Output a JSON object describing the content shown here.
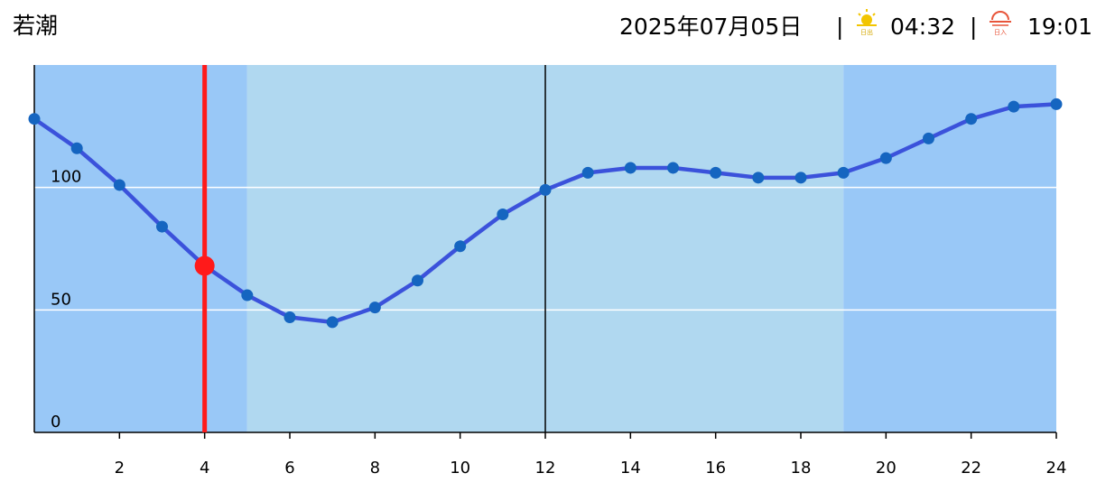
{
  "header": {
    "title": "若潮",
    "date": "2025年07月05日",
    "separator": "|",
    "sunrise_icon_label": "日出",
    "sunrise": "04:32",
    "sunset_icon_label": "日入",
    "sunset": "19:01"
  },
  "chart_data": {
    "type": "line",
    "x": [
      0,
      1,
      2,
      3,
      4,
      5,
      6,
      7,
      8,
      9,
      10,
      11,
      12,
      13,
      14,
      15,
      16,
      17,
      18,
      19,
      20,
      21,
      22,
      23,
      24
    ],
    "series": [
      {
        "color": "#3b52db",
        "marker_color": "#1565c0",
        "values": [
          128,
          116,
          101,
          84,
          68,
          56,
          47,
          45,
          51,
          62,
          76,
          89,
          99,
          106,
          108,
          108,
          106,
          104,
          104,
          106,
          112,
          120,
          128,
          133,
          134
        ]
      }
    ],
    "current": {
      "x": 4,
      "value": 68,
      "color": "#ff1a1a"
    },
    "day_span": [
      5,
      19
    ],
    "day_color": "#b0d8f0",
    "night_color": "#99c8f7",
    "noon_line": 12,
    "xlim": [
      0,
      24
    ],
    "xticks": [
      2,
      4,
      6,
      8,
      10,
      12,
      14,
      16,
      18,
      20,
      22,
      24
    ],
    "ylim": [
      0,
      150
    ],
    "yticks": [
      0,
      50,
      100
    ],
    "grid": true
  }
}
